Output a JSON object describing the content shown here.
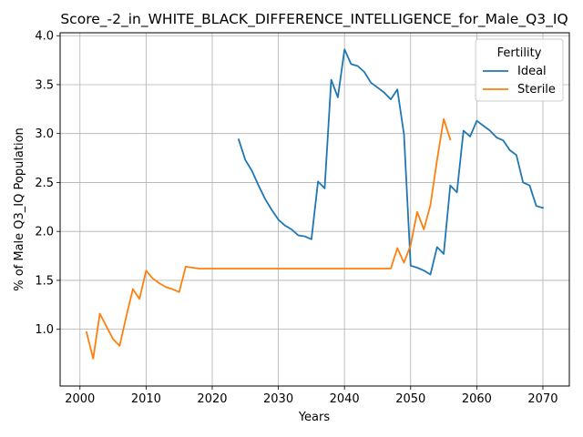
{
  "chart_data": {
    "type": "line",
    "title": "Score_-2_in_WHITE_BLACK_DIFFERENCE_INTELLIGENCE_for_Male_Q3_IQ",
    "xlabel": "Years",
    "ylabel": "% of Male Q3_IQ Population",
    "xlim": [
      1997,
      2074
    ],
    "ylim": [
      0.42,
      4.03
    ],
    "xticks": [
      2000,
      2010,
      2020,
      2030,
      2040,
      2050,
      2060,
      2070
    ],
    "yticks": [
      1.0,
      1.5,
      2.0,
      2.5,
      3.0,
      3.5,
      4.0
    ],
    "xtick_labels": [
      "2000",
      "2010",
      "2020",
      "2030",
      "2040",
      "2050",
      "2060",
      "2070"
    ],
    "ytick_labels": [
      "1.0",
      "1.5",
      "2.0",
      "2.5",
      "3.0",
      "3.5",
      "4.0"
    ],
    "grid": true,
    "legend": {
      "title": "Fertility",
      "position": "top-right"
    },
    "series": [
      {
        "name": "Ideal",
        "color": "#1f77b4",
        "x": [
          2024,
          2025,
          2026,
          2027,
          2028,
          2029,
          2030,
          2031,
          2032,
          2033,
          2034,
          2035,
          2036,
          2037,
          2038,
          2039,
          2040,
          2041,
          2042,
          2043,
          2044,
          2045,
          2046,
          2047,
          2048,
          2049,
          2050,
          2051,
          2052,
          2053,
          2054,
          2055,
          2056,
          2057,
          2058,
          2059,
          2060,
          2061,
          2062,
          2063,
          2064,
          2065,
          2066,
          2067,
          2068,
          2069,
          2070
        ],
        "y": [
          2.94,
          2.73,
          2.62,
          2.47,
          2.33,
          2.22,
          2.12,
          2.06,
          2.02,
          1.96,
          1.95,
          1.92,
          2.51,
          2.44,
          3.55,
          3.37,
          3.86,
          3.71,
          3.69,
          3.63,
          3.52,
          3.47,
          3.42,
          3.35,
          3.45,
          2.99,
          1.65,
          1.63,
          1.6,
          1.56,
          1.84,
          1.77,
          2.47,
          2.4,
          3.03,
          2.97,
          3.13,
          3.08,
          3.03,
          2.96,
          2.93,
          2.83,
          2.78,
          2.5,
          2.47,
          2.26,
          2.24
        ]
      },
      {
        "name": "Sterile",
        "color": "#ff7f0e",
        "x": [
          2001,
          2002,
          2003,
          2004,
          2005,
          2006,
          2007,
          2008,
          2009,
          2010,
          2011,
          2012,
          2013,
          2014,
          2015,
          2016,
          2017,
          2018,
          2019,
          2020,
          2021,
          2022,
          2023,
          2024,
          2025,
          2026,
          2027,
          2028,
          2029,
          2030,
          2031,
          2032,
          2033,
          2034,
          2035,
          2036,
          2037,
          2038,
          2039,
          2040,
          2041,
          2042,
          2043,
          2044,
          2045,
          2046,
          2047,
          2048,
          2049,
          2050,
          2051,
          2052,
          2053,
          2054,
          2055,
          2056
        ],
        "y": [
          0.97,
          0.7,
          1.16,
          1.03,
          0.9,
          0.83,
          1.13,
          1.41,
          1.31,
          1.6,
          1.52,
          1.47,
          1.43,
          1.41,
          1.38,
          1.64,
          1.63,
          1.62,
          1.62,
          1.62,
          1.62,
          1.62,
          1.62,
          1.62,
          1.62,
          1.62,
          1.62,
          1.62,
          1.62,
          1.62,
          1.62,
          1.62,
          1.62,
          1.62,
          1.62,
          1.62,
          1.62,
          1.62,
          1.62,
          1.62,
          1.62,
          1.62,
          1.62,
          1.62,
          1.62,
          1.62,
          1.62,
          1.83,
          1.68,
          1.86,
          2.2,
          2.02,
          2.27,
          2.73,
          3.15,
          2.94
        ]
      }
    ]
  }
}
